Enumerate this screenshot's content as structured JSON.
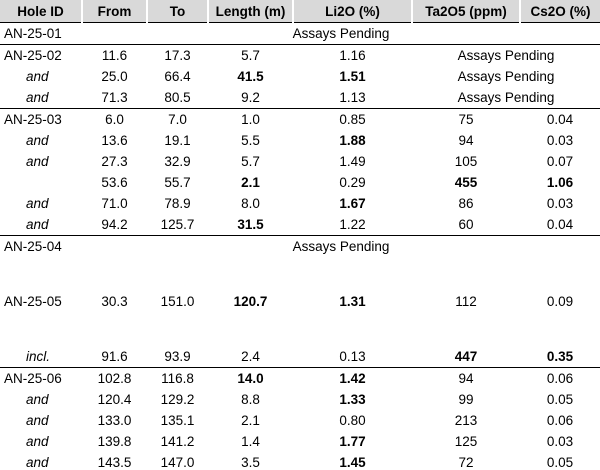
{
  "table": {
    "header": [
      "Hole ID",
      "From",
      "To",
      "Length (m)",
      "Li2O (%)",
      "Ta2O5 (ppm)",
      "Cs2O (%)"
    ],
    "rows": [
      [
        "AN-25-01",
        "Assays Pending"
      ],
      [
        "AN-25-02",
        "11.6",
        "17.3",
        "5.7",
        "1.16",
        "Assays Pending"
      ],
      [
        "and",
        "25.0",
        "66.4",
        "41.5",
        "1.51",
        "Assays Pending"
      ],
      [
        "and",
        "71.3",
        "80.5",
        "9.2",
        "1.13",
        "Assays Pending"
      ],
      [
        "AN-25-03",
        "6.0",
        "7.0",
        "1.0",
        "0.85",
        "75",
        "0.04"
      ],
      [
        "and",
        "13.6",
        "19.1",
        "5.5",
        "1.88",
        "94",
        "0.03"
      ],
      [
        "and",
        "27.3",
        "32.9",
        "5.7",
        "1.49",
        "105",
        "0.07"
      ],
      [
        null,
        "53.6",
        "55.7",
        "2.1",
        "0.29",
        "455",
        "1.06"
      ],
      [
        "and",
        "71.0",
        "78.9",
        "8.0",
        "1.67",
        "86",
        "0.03"
      ],
      [
        "and",
        "94.2",
        "125.7",
        "31.5",
        "1.22",
        "60",
        "0.04"
      ],
      [
        "AN-25-04",
        "Assays Pending"
      ],
      [
        "AN-25-05",
        "30.3",
        "151.0",
        "120.7",
        "1.31",
        "112",
        "0.09"
      ],
      [
        "incl.",
        "91.6",
        "93.9",
        "2.4",
        "0.13",
        "447",
        "0.35"
      ],
      [
        "AN-25-06",
        "102.8",
        "116.8",
        "14.0",
        "1.42",
        "94",
        "0.06"
      ],
      [
        "and",
        "120.4",
        "129.2",
        "8.8",
        "1.33",
        "99",
        "0.05"
      ],
      [
        "and",
        "133.0",
        "135.1",
        "2.1",
        "0.80",
        "213",
        "0.06"
      ],
      [
        "and",
        "139.8",
        "141.2",
        "1.4",
        "1.77",
        "125",
        "0.03"
      ],
      [
        "and",
        "143.5",
        "147.0",
        "3.5",
        "1.45",
        "72",
        "0.05"
      ]
    ]
  }
}
